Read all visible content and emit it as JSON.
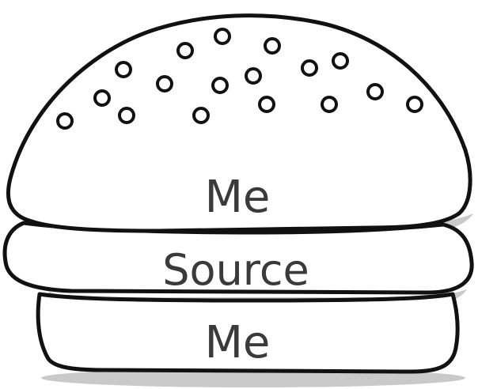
{
  "diagram": {
    "layers": [
      {
        "id": "top-bun",
        "label": "Me"
      },
      {
        "id": "filling",
        "label": "Source"
      },
      {
        "id": "bottom-bun",
        "label": "Me"
      }
    ],
    "colors": {
      "outline": "#111111",
      "text": "#3a3a3a",
      "shadow": "#c9c9c9",
      "fill": "#ffffff"
    }
  }
}
